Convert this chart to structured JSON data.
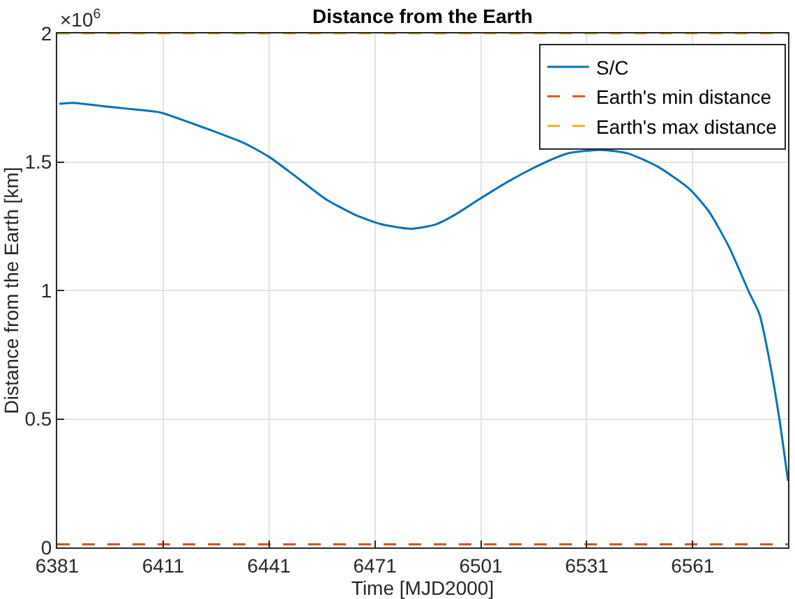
{
  "chart_data": {
    "type": "line",
    "title": "Distance from the Earth",
    "xlabel": "Time [MJD2000]",
    "ylabel": "Distance from the Earth [km]",
    "annotations": [
      "×10$^{6}$"
    ],
    "xlim": [
      6381,
      6588
    ],
    "xticks": [
      6381,
      6411,
      6441,
      6471,
      6501,
      6531,
      6561
    ],
    "ylim": [
      0,
      2
    ],
    "yticks": [
      0,
      0.5,
      1,
      1.5,
      2
    ],
    "grid": true,
    "legend": "top right",
    "marker": "none",
    "series": [
      {
        "name": "S/C",
        "color": "#0072bd",
        "line_style": "solid",
        "x": [
          6381.6,
          6385.6,
          6394,
          6401,
          6410,
          6417,
          6425.6,
          6434,
          6441,
          6448.4,
          6457,
          6465.6,
          6472.7,
          6481.3,
          6488.4,
          6494,
          6500,
          6508.4,
          6517,
          6525.6,
          6534.9,
          6542.7,
          6551.3,
          6560,
          6565.6,
          6571.3,
          6577,
          6579.9,
          6582.7,
          6585.6,
          6588
        ],
        "values": [
          1.726,
          1.73,
          1.717,
          1.707,
          1.693,
          1.661,
          1.618,
          1.573,
          1.52,
          1.445,
          1.356,
          1.293,
          1.258,
          1.24,
          1.258,
          1.297,
          1.35,
          1.421,
          1.484,
          1.533,
          1.547,
          1.533,
          1.48,
          1.396,
          1.307,
          1.169,
          0.992,
          0.908,
          0.731,
          0.495,
          0.259
        ]
      },
      {
        "name": "Earth's min distance",
        "color": "#d95319",
        "line_style": "dashed",
        "x": [
          6381,
          6588
        ],
        "values": [
          0.012,
          0.012
        ]
      },
      {
        "name": "Earth's max distance",
        "color": "#edb120",
        "line_style": "dashed",
        "x": [
          6381,
          6588
        ],
        "values": [
          2,
          2
        ]
      }
    ]
  }
}
